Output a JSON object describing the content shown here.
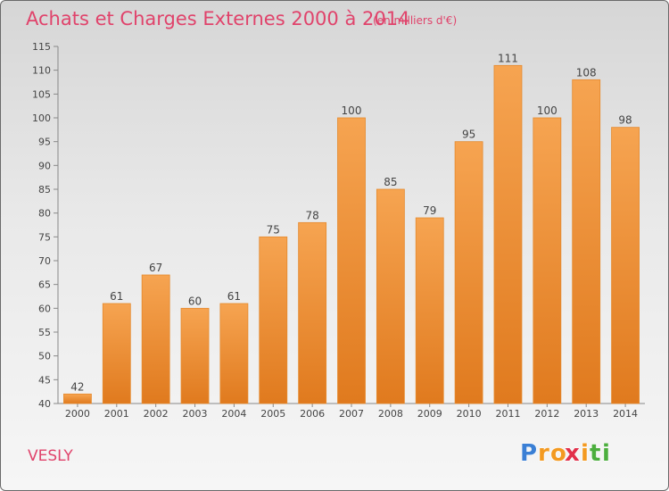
{
  "chart_data": {
    "type": "bar",
    "title": "Achats et Charges Externes 2000 à 2014",
    "subtitle": "(en milliers d'€)",
    "xlabel": "",
    "ylabel": "",
    "categories": [
      "2000",
      "2001",
      "2002",
      "2003",
      "2004",
      "2005",
      "2006",
      "2007",
      "2008",
      "2009",
      "2010",
      "2011",
      "2012",
      "2013",
      "2014"
    ],
    "values": [
      42,
      61,
      67,
      60,
      61,
      75,
      78,
      100,
      85,
      79,
      95,
      111,
      100,
      108,
      98
    ],
    "ylim": [
      40,
      115
    ],
    "yticks": [
      40,
      45,
      50,
      55,
      60,
      65,
      70,
      75,
      80,
      85,
      90,
      95,
      100,
      105,
      110,
      115
    ],
    "grid": false,
    "bar_color_top": "#f6a451",
    "bar_color_bottom": "#e07a1e",
    "bar_border": "#e58a2e"
  },
  "location_label": "VESLY",
  "location_color": "#e0436b",
  "brand": {
    "letters": [
      "P",
      "r",
      "o",
      "x",
      "i",
      "t",
      "i"
    ],
    "colors": [
      "#3a7fd5",
      "#f39a21",
      "#f39a21",
      "#e2304a",
      "#f39a21",
      "#4cae3e",
      "#4cae3e"
    ]
  }
}
